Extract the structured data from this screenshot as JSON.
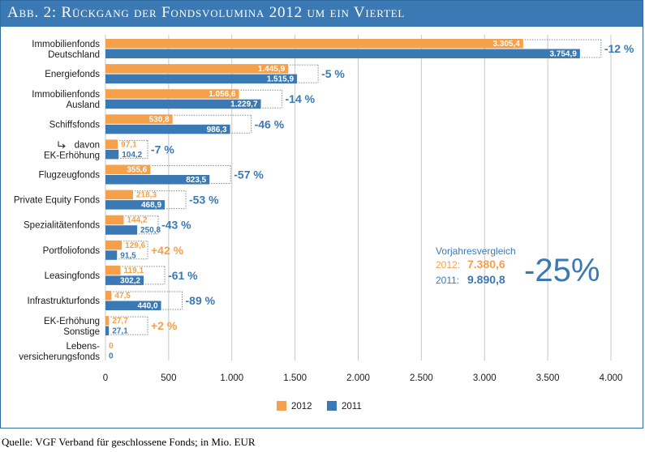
{
  "header": {
    "title": "Abb. 2: Rückgang der Fondsvolumina 2012 um ein Viertel"
  },
  "source": "Quelle: VGF Verband für geschlossene Fonds; in Mio. EUR",
  "colors": {
    "series_2012": "#f5a04a",
    "series_2011": "#3a79b4",
    "header_bg": "#3a79b4",
    "grid": "#c8c8c8"
  },
  "summary": {
    "title": "Vorjahresvergleich",
    "year_2012_label": "2012:",
    "year_2012_value": "7.380,6",
    "year_2011_label": "2011:",
    "year_2011_value": "9.890,8",
    "change": "-25%"
  },
  "chart_data": {
    "type": "bar",
    "orientation": "horizontal",
    "title": "Abb. 2: Rückgang der Fondsvolumina 2012 um ein Viertel",
    "xlim": [
      0,
      4000
    ],
    "xticks": [
      0,
      500,
      1000,
      1500,
      2000,
      2500,
      3000,
      3500,
      4000
    ],
    "xtick_labels": [
      "0",
      "500",
      "1.000",
      "1.500",
      "2.000",
      "2.500",
      "3.000",
      "3.500",
      "4.000"
    ],
    "grid": "vertical",
    "legend_position": "bottom",
    "categories": [
      [
        "Immobilienfonds",
        "Deutschland"
      ],
      [
        "Energiefonds"
      ],
      [
        "Immobilienfonds",
        "Ausland"
      ],
      [
        "Schiffsfonds"
      ],
      [
        "davon",
        "EK-Erhöhung"
      ],
      [
        "Flugzeugfonds"
      ],
      [
        "Private Equity Fonds"
      ],
      [
        "Spezialitätenfonds"
      ],
      [
        "Portfoliofonds"
      ],
      [
        "Leasingfonds"
      ],
      [
        "Infrastrukturfonds"
      ],
      [
        "EK-Erhöhung",
        "Sonstige"
      ],
      [
        "Lebens-",
        "versicherungsfonds"
      ]
    ],
    "series": [
      {
        "name": "2012",
        "values": [
          3305.4,
          1445.9,
          1056.6,
          530.8,
          97.1,
          355.6,
          218.3,
          144.2,
          129.6,
          119.1,
          47.5,
          27.7,
          0
        ],
        "labels": [
          "3.305,4",
          "1.445,9",
          "1.056,6",
          "530,8",
          "97,1",
          "355,6",
          "218,3",
          "144,2",
          "129,6",
          "119,1",
          "47,5",
          "27,7",
          "0"
        ]
      },
      {
        "name": "2011",
        "values": [
          3754.9,
          1515.9,
          1229.7,
          986.3,
          104.2,
          823.5,
          468.9,
          250.8,
          91.5,
          302.2,
          440.0,
          27.1,
          0
        ],
        "labels": [
          "3.754,9",
          "1.515,9",
          "1.229,7",
          "986,3",
          "104,2",
          "823,5",
          "468,9",
          "250,8",
          "91,5",
          "302,2",
          "440,0",
          "27,1",
          "0"
        ]
      }
    ],
    "changes": [
      "-12 %",
      "-5 %",
      "-14 %",
      "-46 %",
      "-7 %",
      "-57 %",
      "-53 %",
      "-43 %",
      "+42 %",
      "-61 %",
      "-89 %",
      "+2 %",
      ""
    ]
  }
}
